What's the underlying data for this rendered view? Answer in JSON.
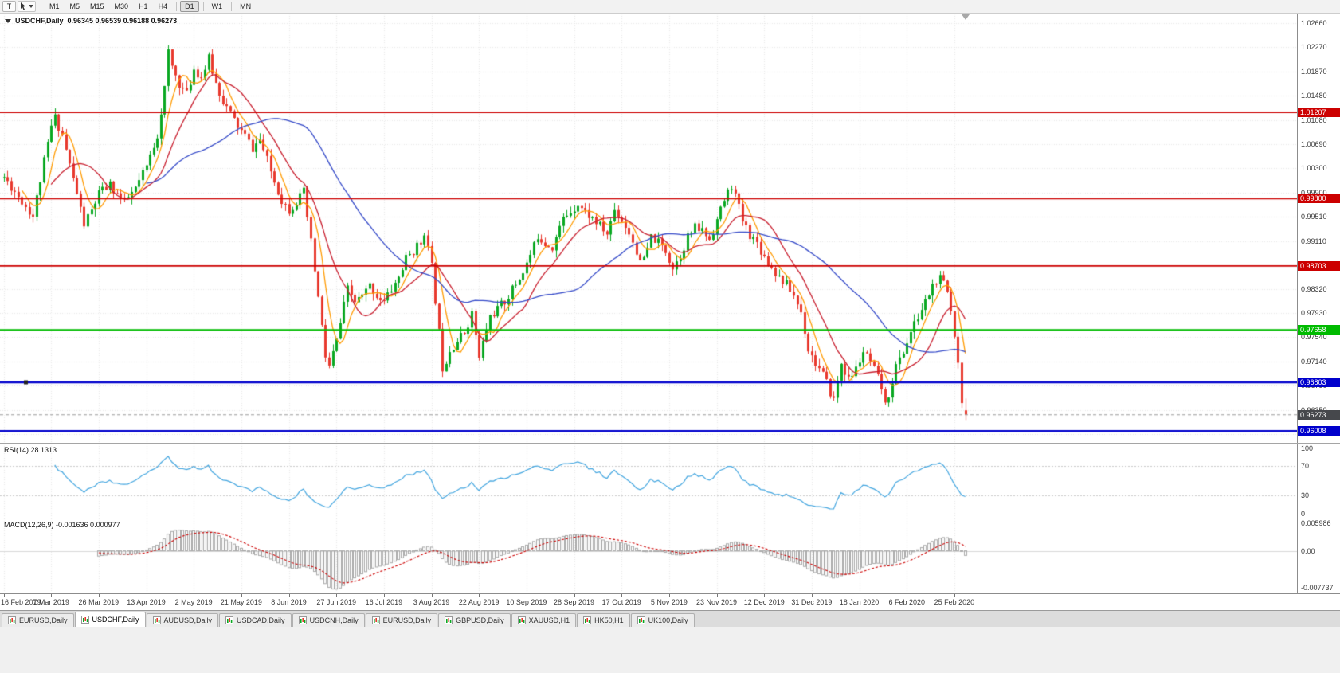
{
  "toolbar": {
    "tool_button": "T",
    "timeframes": [
      "M1",
      "M5",
      "M15",
      "M30",
      "H1",
      "H4",
      "D1",
      "W1",
      "MN"
    ],
    "active_timeframe": "D1"
  },
  "chart": {
    "symbol_title": "USDCHF,Daily",
    "ohlc_text": "0.96345 0.96539 0.96188 0.96273"
  },
  "chart_data": {
    "type": "candlestick",
    "symbol": "USDCHF",
    "timeframe": "Daily",
    "ohlc": {
      "open": 0.96345,
      "high": 0.96539,
      "low": 0.96188,
      "close": 0.96273
    },
    "x_labels": [
      "16 Feb 2019",
      "7 Mar 2019",
      "26 Mar 2019",
      "13 Apr 2019",
      "2 May 2019",
      "21 May 2019",
      "8 Jun 2019",
      "27 Jun 2019",
      "16 Jul 2019",
      "3 Aug 2019",
      "22 Aug 2019",
      "10 Sep 2019",
      "28 Sep 2019",
      "17 Oct 2019",
      "5 Nov 2019",
      "23 Nov 2019",
      "12 Dec 2019",
      "31 Dec 2019",
      "18 Jan 2020",
      "6 Feb 2020",
      "25 Feb 2020"
    ],
    "y_axis_labels": [
      "1.02660",
      "1.02270",
      "1.01870",
      "1.01480",
      "1.01080",
      "1.00690",
      "1.00300",
      "0.99900",
      "0.99510",
      "0.99110",
      "0.98720",
      "0.98320",
      "0.97930",
      "0.97540",
      "0.97140",
      "0.96750",
      "0.96350",
      "0.95960"
    ],
    "price_top": 1.02822,
    "price_bottom": 0.95815,
    "hlines": [
      {
        "price": 1.01207,
        "label": "1.01207",
        "color": "#CC0000",
        "width": 1.6
      },
      {
        "price": 0.998,
        "label": "0.99800",
        "color": "#CC0000",
        "width": 1.6
      },
      {
        "price": 0.98703,
        "label": "0.98703",
        "color": "#CC0000",
        "width": 1.6
      },
      {
        "price": 0.97658,
        "label": "0.97658",
        "color": "#00BB00",
        "width": 2
      },
      {
        "price": 0.96803,
        "label": "0.96803",
        "color": "#0000CC",
        "width": 2.4,
        "marker": true
      },
      {
        "price": 0.96008,
        "label": "0.96008",
        "color": "#0000CC",
        "width": 2.4
      }
    ],
    "current_price": {
      "value": 0.96273,
      "label": "0.96273",
      "tag_color": "#46484C"
    },
    "moving_averages": [
      {
        "period": 6,
        "color": "#FF9A00"
      },
      {
        "period": 14,
        "color": "#C81E2E"
      },
      {
        "period": 40,
        "color": "#3449C8"
      }
    ],
    "candles": {
      "count": 264,
      "seed": 11,
      "anchors": [
        [
          0,
          1.0015
        ],
        [
          3,
          0.9992
        ],
        [
          6,
          0.9968
        ],
        [
          8,
          0.9952
        ],
        [
          11,
          1.004
        ],
        [
          13,
          1.0098
        ],
        [
          14,
          1.0112
        ],
        [
          16,
          1.0085
        ],
        [
          18,
          1.0035
        ],
        [
          20,
          0.9988
        ],
        [
          22,
          0.9938
        ],
        [
          24,
          0.996
        ],
        [
          26,
          0.9988
        ],
        [
          29,
          1.0002
        ],
        [
          31,
          0.9988
        ],
        [
          33,
          0.9974
        ],
        [
          36,
          0.9996
        ],
        [
          39,
          1.0032
        ],
        [
          42,
          1.0085
        ],
        [
          44,
          1.016
        ],
        [
          45,
          1.0218
        ],
        [
          46,
          1.0195
        ],
        [
          48,
          1.0168
        ],
        [
          50,
          1.015
        ],
        [
          52,
          1.0192
        ],
        [
          54,
          1.0178
        ],
        [
          56,
          1.0208
        ],
        [
          58,
          1.0168
        ],
        [
          60,
          1.014
        ],
        [
          62,
          1.0118
        ],
        [
          64,
          1.0098
        ],
        [
          66,
          1.0082
        ],
        [
          68,
          1.0062
        ],
        [
          70,
          1.0076
        ],
        [
          72,
          1.0042
        ],
        [
          74,
          1.0008
        ],
        [
          76,
          0.9978
        ],
        [
          78,
          0.9962
        ],
        [
          80,
          0.9975
        ],
        [
          82,
          0.999
        ],
        [
          84,
          0.9908
        ],
        [
          86,
          0.9818
        ],
        [
          88,
          0.9722
        ],
        [
          89,
          0.9706
        ],
        [
          91,
          0.9748
        ],
        [
          93,
          0.9805
        ],
        [
          94,
          0.9832
        ],
        [
          96,
          0.9812
        ],
        [
          98,
          0.982
        ],
        [
          100,
          0.9838
        ],
        [
          102,
          0.9822
        ],
        [
          104,
          0.9812
        ],
        [
          106,
          0.9832
        ],
        [
          108,
          0.9852
        ],
        [
          110,
          0.9882
        ],
        [
          112,
          0.9895
        ],
        [
          114,
          0.9908
        ],
        [
          115,
          0.9928
        ],
        [
          116,
          0.9898
        ],
        [
          117,
          0.9868
        ],
        [
          118,
          0.9815
        ],
        [
          119,
          0.9762
        ],
        [
          120,
          0.9705
        ],
        [
          121,
          0.9718
        ],
        [
          122,
          0.9734
        ],
        [
          124,
          0.9748
        ],
        [
          126,
          0.9762
        ],
        [
          128,
          0.9792
        ],
        [
          129,
          0.9758
        ],
        [
          130,
          0.9718
        ],
        [
          131,
          0.9745
        ],
        [
          133,
          0.9788
        ],
        [
          135,
          0.98
        ],
        [
          137,
          0.9812
        ],
        [
          139,
          0.9832
        ],
        [
          141,
          0.985
        ],
        [
          143,
          0.9874
        ],
        [
          145,
          0.9902
        ],
        [
          146,
          0.992
        ],
        [
          148,
          0.9908
        ],
        [
          150,
          0.9902
        ],
        [
          152,
          0.9932
        ],
        [
          153,
          0.9948
        ],
        [
          155,
          0.996
        ],
        [
          157,
          0.9972
        ],
        [
          159,
          0.9958
        ],
        [
          161,
          0.9948
        ],
        [
          163,
          0.9935
        ],
        [
          165,
          0.9922
        ],
        [
          167,
          0.9962
        ],
        [
          169,
          0.9945
        ],
        [
          171,
          0.9925
        ],
        [
          173,
          0.9895
        ],
        [
          174,
          0.9872
        ],
        [
          176,
          0.9895
        ],
        [
          177,
          0.9918
        ],
        [
          179,
          0.9908
        ],
        [
          181,
          0.9895
        ],
        [
          183,
          0.9868
        ],
        [
          185,
          0.9888
        ],
        [
          187,
          0.9918
        ],
        [
          189,
          0.9932
        ],
        [
          191,
          0.9928
        ],
        [
          193,
          0.9914
        ],
        [
          195,
          0.9945
        ],
        [
          197,
          0.9978
        ],
        [
          199,
          1.0002
        ],
        [
          200,
          0.9985
        ],
        [
          202,
          0.9944
        ],
        [
          204,
          0.9922
        ],
        [
          206,
          0.9908
        ],
        [
          208,
          0.9885
        ],
        [
          210,
          0.9868
        ],
        [
          212,
          0.9852
        ],
        [
          214,
          0.984
        ],
        [
          216,
          0.9822
        ],
        [
          218,
          0.9795
        ],
        [
          220,
          0.9735
        ],
        [
          222,
          0.9712
        ],
        [
          224,
          0.9692
        ],
        [
          226,
          0.9664
        ],
        [
          227,
          0.9652
        ],
        [
          229,
          0.9712
        ],
        [
          231,
          0.9684
        ],
        [
          233,
          0.9702
        ],
        [
          235,
          0.973
        ],
        [
          237,
          0.9712
        ],
        [
          238,
          0.97
        ],
        [
          240,
          0.9672
        ],
        [
          241,
          0.964
        ],
        [
          242,
          0.9662
        ],
        [
          244,
          0.9706
        ],
        [
          246,
          0.973
        ],
        [
          248,
          0.9762
        ],
        [
          250,
          0.9786
        ],
        [
          252,
          0.9812
        ],
        [
          254,
          0.9838
        ],
        [
          256,
          0.9849
        ],
        [
          257,
          0.984
        ],
        [
          258,
          0.9828
        ],
        [
          259,
          0.9796
        ],
        [
          260,
          0.976
        ],
        [
          261,
          0.9718
        ],
        [
          262,
          0.9645
        ],
        [
          263,
          0.96273
        ]
      ]
    },
    "rsi": {
      "label": "RSI(14) 28.1313",
      "period": 14,
      "current": 28.1313,
      "levels": [
        100,
        70,
        30,
        0
      ],
      "color": "#42A5DF"
    },
    "macd": {
      "label": "MACD(12,26,9) -0.001636 0.000977",
      "fast": 12,
      "slow": 26,
      "signal": 9,
      "current_main": -0.001636,
      "current_signal": 0.000977,
      "axis_labels": [
        "0.005986",
        "0.00",
        "-0.007737"
      ],
      "max": 0.005986,
      "min": -0.007737,
      "hist_color": "#A9A9A9",
      "signal_color": "#CC0000"
    }
  },
  "tabs": {
    "items": [
      {
        "label": "EURUSD,Daily",
        "active": false
      },
      {
        "label": "USDCHF,Daily",
        "active": true
      },
      {
        "label": "AUDUSD,Daily",
        "active": false
      },
      {
        "label": "USDCAD,Daily",
        "active": false
      },
      {
        "label": "USDCNH,Daily",
        "active": false
      },
      {
        "label": "EURUSD,Daily",
        "active": false
      },
      {
        "label": "GBPUSD,Daily",
        "active": false
      },
      {
        "label": "XAUUSD,H1",
        "active": false
      },
      {
        "label": "HK50,H1",
        "active": false
      },
      {
        "label": "UK100,Daily",
        "active": false
      }
    ]
  },
  "colors": {
    "bull": "#0AA822",
    "bear": "#E8392E",
    "background": "#FFFFFF",
    "grid": "#E7E7E7"
  }
}
